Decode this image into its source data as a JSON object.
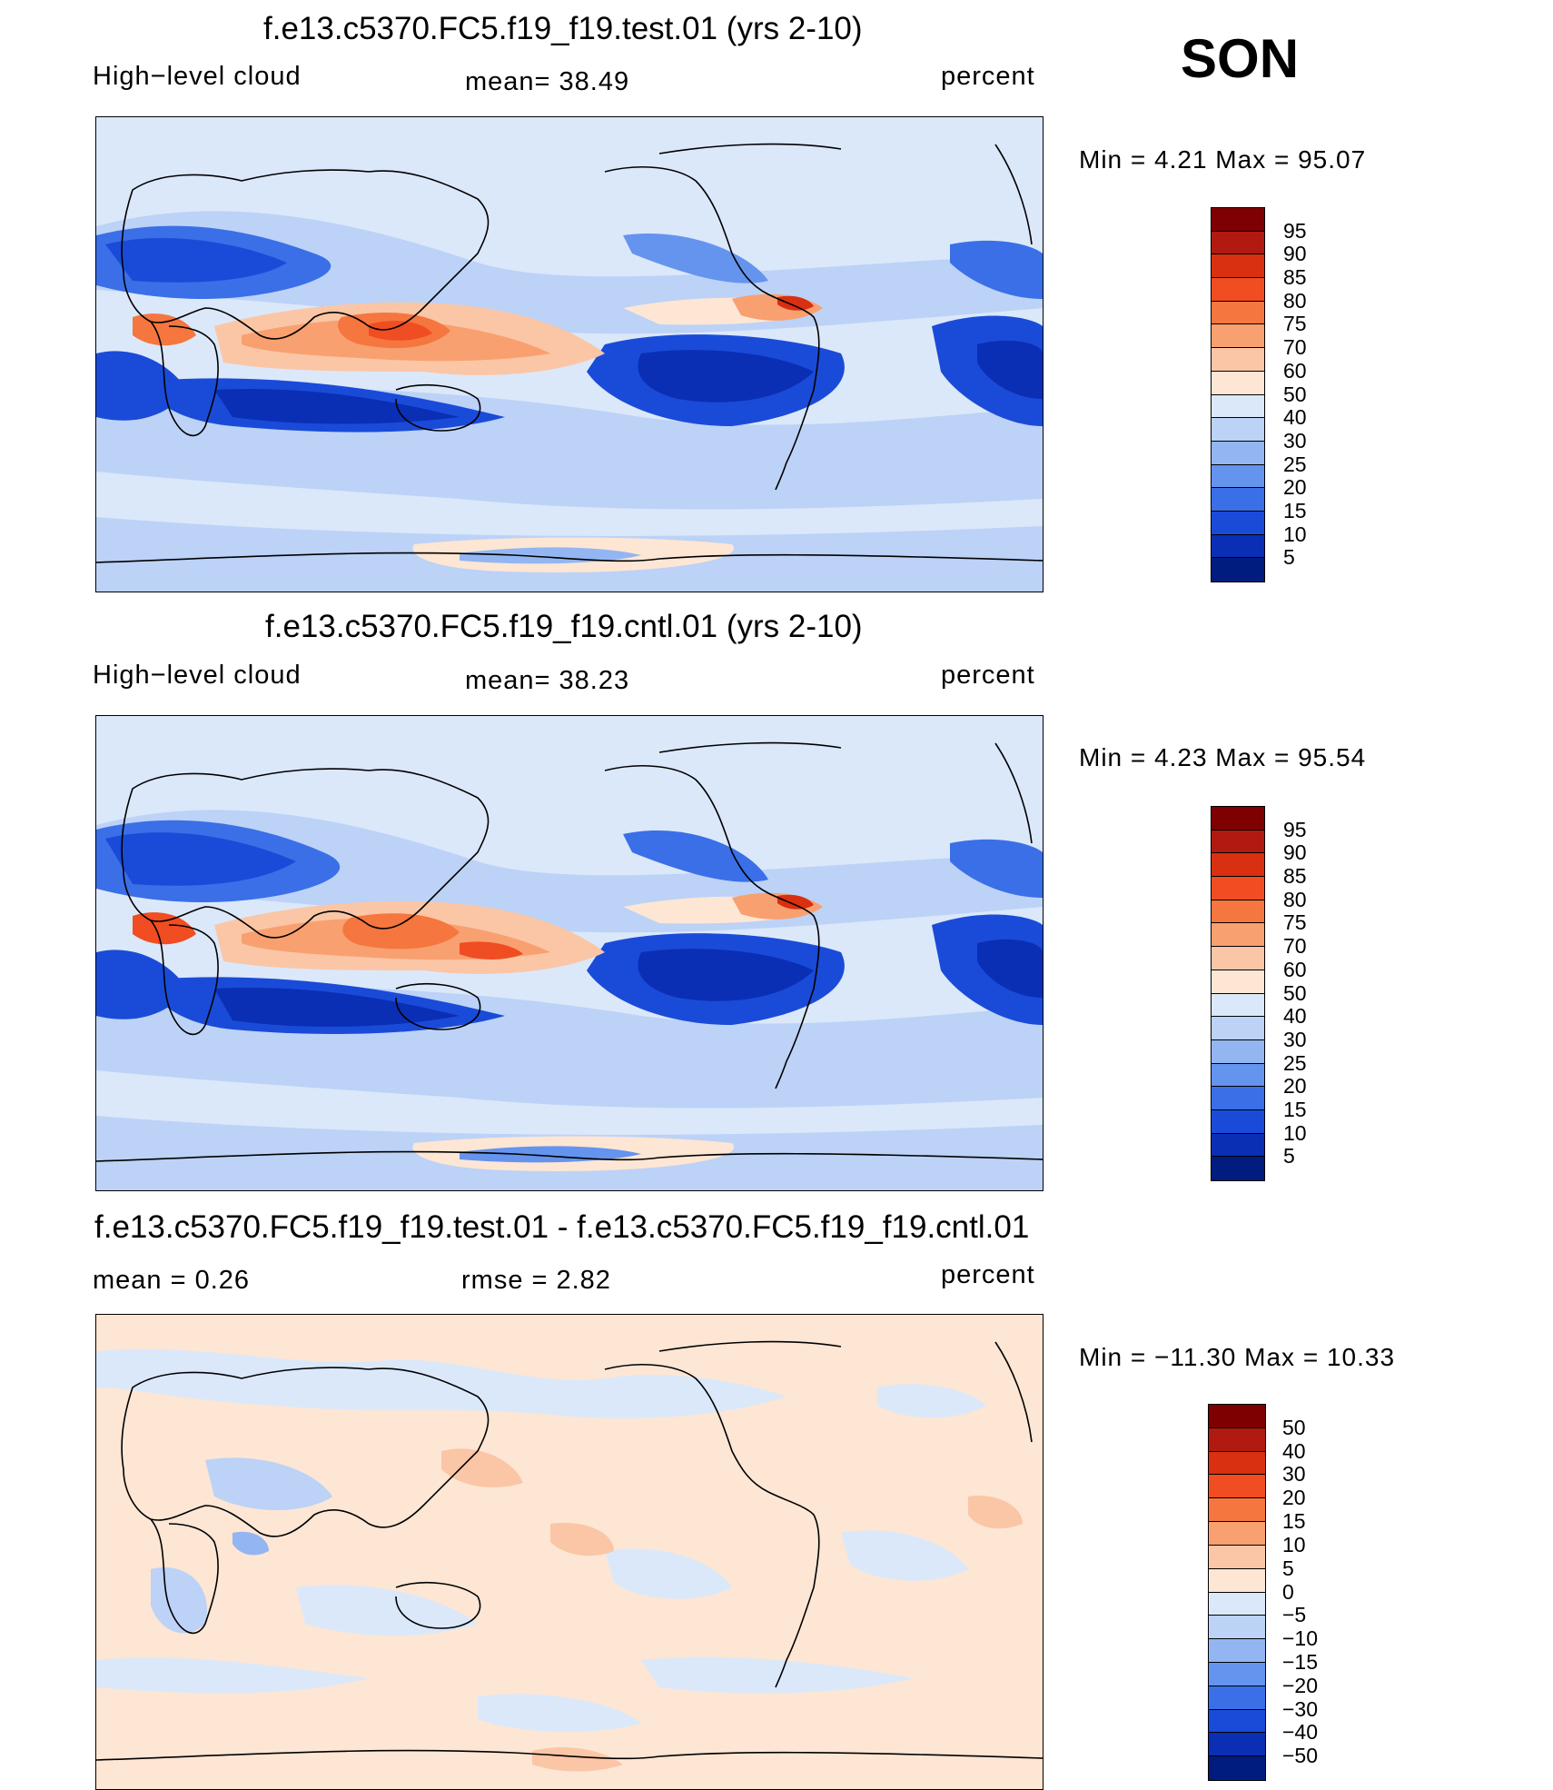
{
  "season": "SON",
  "panels": [
    {
      "title": "f.e13.c5370.FC5.f19_f19.test.01 (yrs 2-10)",
      "left_label": "High−level cloud",
      "center_label": "mean=   38.49",
      "right_label": "percent",
      "minmax": "Min  =     4.21  Max  =    95.07"
    },
    {
      "title": "f.e13.c5370.FC5.f19_f19.cntl.01 (yrs 2-10)",
      "left_label": "High−level cloud",
      "center_label": "mean=   38.23",
      "right_label": "percent",
      "minmax": "Min  =     4.23  Max  =    95.54"
    },
    {
      "title": "f.e13.c5370.FC5.f19_f19.test.01 - f.e13.c5370.FC5.f19_f19.cntl.01",
      "left_label": "mean  =      0.26",
      "center_label": "rmse  =      2.82",
      "right_label": "percent",
      "minmax": "Min  = −11.30  Max  =    10.33"
    }
  ],
  "colorbars": [
    {
      "labels": [
        "95",
        "90",
        "85",
        "80",
        "75",
        "70",
        "60",
        "50",
        "40",
        "30",
        "25",
        "20",
        "15",
        "10",
        "5"
      ],
      "colors": [
        "#7f0000",
        "#b01a10",
        "#d83010",
        "#f04d22",
        "#f5763e",
        "#f9a070",
        "#fbc6a6",
        "#fde6d4",
        "#dbe8fa",
        "#bcd2f7",
        "#93b6f3",
        "#6594ee",
        "#3a6fe8",
        "#1a4bd8",
        "#0a2fb5",
        "#001c7f"
      ]
    },
    {
      "labels": [
        "95",
        "90",
        "85",
        "80",
        "75",
        "70",
        "60",
        "50",
        "40",
        "30",
        "25",
        "20",
        "15",
        "10",
        "5"
      ],
      "colors": [
        "#7f0000",
        "#b01a10",
        "#d83010",
        "#f04d22",
        "#f5763e",
        "#f9a070",
        "#fbc6a6",
        "#fde6d4",
        "#dbe8fa",
        "#bcd2f7",
        "#93b6f3",
        "#6594ee",
        "#3a6fe8",
        "#1a4bd8",
        "#0a2fb5",
        "#001c7f"
      ]
    },
    {
      "labels": [
        "50",
        "40",
        "30",
        "20",
        "15",
        "10",
        "5",
        "0",
        "−5",
        "−10",
        "−15",
        "−20",
        "−30",
        "−40",
        "−50"
      ],
      "colors": [
        "#7f0000",
        "#b01a10",
        "#d83010",
        "#f04d22",
        "#f5763e",
        "#f9a070",
        "#fbc6a6",
        "#fde6d4",
        "#dbe8fa",
        "#bcd2f7",
        "#93b6f3",
        "#6594ee",
        "#3a6fe8",
        "#1a4bd8",
        "#0a2fb5",
        "#001c7f"
      ]
    }
  ]
}
